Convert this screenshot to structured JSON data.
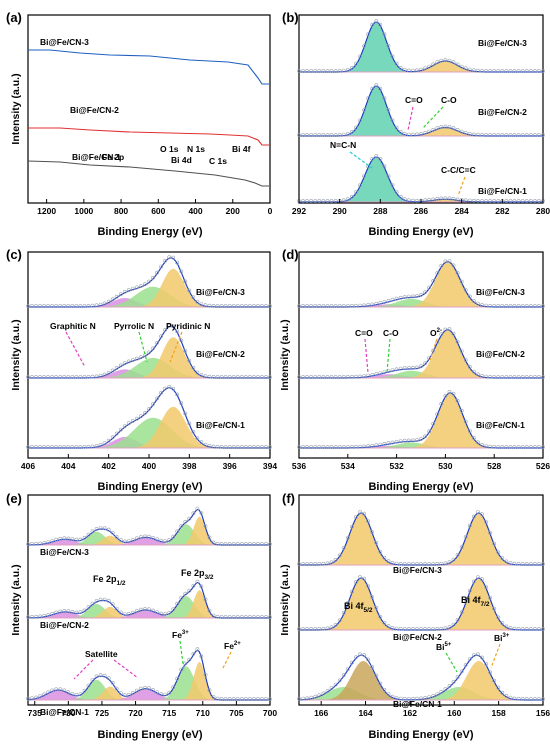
{
  "figure": {
    "ylabel": "Intensity (a.u.)",
    "xlabel": "Binding Energy (eV)"
  },
  "chart_data": [
    {
      "panel": "(a)",
      "type": "line",
      "xlabel": "Binding Energy (eV)",
      "ylabel": "Intensity (a.u.)",
      "xlim": [
        1300,
        0
      ],
      "xticks": [
        1200,
        1000,
        800,
        600,
        400,
        200,
        0
      ],
      "series": [
        {
          "name": "Bi@Fe/CN-3",
          "color": "#1f5fbf",
          "offset": 2.0
        },
        {
          "name": "Bi@Fe/CN-2",
          "color": "#e03030",
          "offset": 1.0
        },
        {
          "name": "Bi@Fe/CN-1",
          "color": "#505050",
          "offset": 0.0
        }
      ],
      "peaks": [
        {
          "label": "Fe 2p",
          "x": 711
        },
        {
          "label": "O 1s",
          "x": 531
        },
        {
          "label": "Bi 4d",
          "x": 442
        },
        {
          "label": "N 1s",
          "x": 399
        },
        {
          "label": "C 1s",
          "x": 285
        },
        {
          "label": "Bi 4f",
          "x": 159
        }
      ]
    },
    {
      "panel": "(b)",
      "type": "area",
      "xlabel": "Binding Energy (eV)",
      "xlim": [
        292,
        280
      ],
      "xticks": [
        292,
        290,
        288,
        286,
        284,
        282,
        280
      ],
      "series": [
        {
          "name": "Bi@Fe/CN-3",
          "components": [
            {
              "center": 288.2,
              "height": 1.0,
              "fwhm": 1.2,
              "color": "#5fd1b0"
            },
            {
              "center": 284.8,
              "height": 0.22,
              "fwhm": 1.4,
              "color": "#f2c96b"
            }
          ]
        },
        {
          "name": "Bi@Fe/CN-2",
          "components": [
            {
              "center": 288.2,
              "height": 1.0,
              "fwhm": 1.2,
              "color": "#5fd1b0"
            },
            {
              "center": 284.8,
              "height": 0.17,
              "fwhm": 1.4,
              "color": "#f2c96b"
            }
          ]
        },
        {
          "name": "Bi@Fe/CN-1",
          "components": [
            {
              "center": 288.2,
              "height": 1.0,
              "fwhm": 1.3,
              "color": "#5fd1b0"
            },
            {
              "center": 284.8,
              "height": 0.06,
              "fwhm": 1.4,
              "color": "#f2c96b"
            }
          ]
        }
      ],
      "annotations": [
        "N=C-N",
        "C=O",
        "C-O",
        "C-C/C=C"
      ]
    },
    {
      "panel": "(c)",
      "type": "area",
      "xlabel": "Binding Energy (eV)",
      "xlim": [
        406,
        394
      ],
      "xticks": [
        406,
        404,
        402,
        400,
        398,
        396,
        394
      ],
      "series": [
        {
          "name": "Bi@Fe/CN-3",
          "components": [
            {
              "center": 401.2,
              "height": 0.2,
              "fwhm": 1.4,
              "color": "#d98fe0"
            },
            {
              "center": 399.8,
              "height": 0.45,
              "fwhm": 2.0,
              "color": "#9be08f"
            },
            {
              "center": 398.8,
              "height": 0.85,
              "fwhm": 1.3,
              "color": "#f2c96b"
            }
          ]
        },
        {
          "name": "Bi@Fe/CN-2",
          "components": [
            {
              "center": 401.2,
              "height": 0.18,
              "fwhm": 1.4,
              "color": "#d98fe0"
            },
            {
              "center": 399.8,
              "height": 0.42,
              "fwhm": 2.0,
              "color": "#9be08f"
            },
            {
              "center": 398.8,
              "height": 0.85,
              "fwhm": 1.3,
              "color": "#f2c96b"
            }
          ]
        },
        {
          "name": "Bi@Fe/CN-1",
          "components": [
            {
              "center": 401.2,
              "height": 0.2,
              "fwhm": 1.4,
              "color": "#d98fe0"
            },
            {
              "center": 399.8,
              "height": 0.55,
              "fwhm": 2.2,
              "color": "#9be08f"
            },
            {
              "center": 398.8,
              "height": 0.75,
              "fwhm": 1.5,
              "color": "#f2c96b"
            }
          ]
        }
      ],
      "annotations": [
        "Graphitic N",
        "Pyrrolic N",
        "Pyridinic N"
      ]
    },
    {
      "panel": "(d)",
      "type": "area",
      "xlabel": "Binding Energy (eV)",
      "xlim": [
        536,
        526
      ],
      "xticks": [
        536,
        534,
        532,
        530,
        528,
        526
      ],
      "series": [
        {
          "name": "Bi@Fe/CN-3",
          "components": [
            {
              "center": 532.3,
              "height": 0.06,
              "fwhm": 1.4,
              "color": "#d98fe0"
            },
            {
              "center": 531.4,
              "height": 0.18,
              "fwhm": 1.4,
              "color": "#9be08f"
            },
            {
              "center": 529.9,
              "height": 1.0,
              "fwhm": 1.2,
              "color": "#f2c96b"
            }
          ]
        },
        {
          "name": "Bi@Fe/CN-2",
          "components": [
            {
              "center": 532.3,
              "height": 0.08,
              "fwhm": 1.4,
              "color": "#d98fe0"
            },
            {
              "center": 531.4,
              "height": 0.15,
              "fwhm": 1.4,
              "color": "#9be08f"
            },
            {
              "center": 529.9,
              "height": 1.0,
              "fwhm": 1.2,
              "color": "#f2c96b"
            }
          ]
        },
        {
          "name": "Bi@Fe/CN-1",
          "components": [
            {
              "center": 532.3,
              "height": 0.04,
              "fwhm": 1.4,
              "color": "#d98fe0"
            },
            {
              "center": 531.4,
              "height": 0.1,
              "fwhm": 1.4,
              "color": "#9be08f"
            },
            {
              "center": 529.8,
              "height": 1.0,
              "fwhm": 1.2,
              "color": "#f2c96b"
            }
          ]
        }
      ],
      "annotations": [
        "C=O",
        "C-O",
        "O2-"
      ]
    },
    {
      "panel": "(e)",
      "type": "area",
      "xlabel": "Binding Energy (eV)",
      "xlim": [
        736,
        700
      ],
      "xticks": [
        735,
        730,
        725,
        720,
        715,
        710,
        705,
        700
      ],
      "series": [
        {
          "name": "Bi@Fe/CN-3",
          "components": [
            {
              "center": 730.5,
              "height": 0.15,
              "fwhm": 4.0,
              "color": "#d98fe0"
            },
            {
              "center": 725.8,
              "height": 0.35,
              "fwhm": 3.0,
              "color": "#9be08f"
            },
            {
              "center": 723.8,
              "height": 0.25,
              "fwhm": 2.5,
              "color": "#f2c96b"
            },
            {
              "center": 718.5,
              "height": 0.2,
              "fwhm": 4.0,
              "color": "#d98fe0"
            },
            {
              "center": 712.5,
              "height": 0.55,
              "fwhm": 3.0,
              "color": "#9be08f"
            },
            {
              "center": 710.5,
              "height": 0.75,
              "fwhm": 2.0,
              "color": "#f2c96b"
            }
          ]
        },
        {
          "name": "Bi@Fe/CN-2",
          "components": [
            {
              "center": 730.5,
              "height": 0.15,
              "fwhm": 4.0,
              "color": "#d98fe0"
            },
            {
              "center": 725.8,
              "height": 0.35,
              "fwhm": 3.0,
              "color": "#9be08f"
            },
            {
              "center": 723.8,
              "height": 0.28,
              "fwhm": 2.5,
              "color": "#f2c96b"
            },
            {
              "center": 718.5,
              "height": 0.2,
              "fwhm": 4.0,
              "color": "#d98fe0"
            },
            {
              "center": 712.5,
              "height": 0.55,
              "fwhm": 3.0,
              "color": "#9be08f"
            },
            {
              "center": 710.5,
              "height": 0.7,
              "fwhm": 2.0,
              "color": "#f2c96b"
            }
          ]
        },
        {
          "name": "Bi@Fe/CN-1",
          "components": [
            {
              "center": 731.5,
              "height": 0.22,
              "fwhm": 4.0,
              "color": "#d98fe0"
            },
            {
              "center": 725.8,
              "height": 0.45,
              "fwhm": 3.0,
              "color": "#9be08f"
            },
            {
              "center": 723.8,
              "height": 0.3,
              "fwhm": 2.5,
              "color": "#f2c96b"
            },
            {
              "center": 718.5,
              "height": 0.25,
              "fwhm": 4.0,
              "color": "#d98fe0"
            },
            {
              "center": 712.5,
              "height": 0.75,
              "fwhm": 3.0,
              "color": "#9be08f"
            },
            {
              "center": 710.5,
              "height": 0.85,
              "fwhm": 2.0,
              "color": "#f2c96b"
            }
          ]
        }
      ],
      "annotations": [
        "Fe 2p1/2",
        "Fe 2p3/2",
        "Satellite",
        "Fe3+",
        "Fe2+"
      ]
    },
    {
      "panel": "(f)",
      "type": "area",
      "xlabel": "Binding Energy (eV)",
      "xlim": [
        167,
        156
      ],
      "xticks": [
        166,
        164,
        162,
        160,
        158,
        156
      ],
      "series": [
        {
          "name": "Bi@Fe/CN-3",
          "components": [
            {
              "center": 164.2,
              "height": 1.0,
              "fwhm": 1.2,
              "color": "#f2c96b"
            },
            {
              "center": 158.9,
              "height": 1.0,
              "fwhm": 1.2,
              "color": "#f2c96b"
            }
          ]
        },
        {
          "name": "Bi@Fe/CN-2",
          "components": [
            {
              "center": 164.2,
              "height": 1.0,
              "fwhm": 1.2,
              "color": "#f2c96b"
            },
            {
              "center": 158.9,
              "height": 1.0,
              "fwhm": 1.2,
              "color": "#f2c96b"
            }
          ]
        },
        {
          "name": "Bi@Fe/CN-1",
          "components": [
            {
              "center": 165.0,
              "height": 0.25,
              "fwhm": 1.6,
              "color": "#9be08f"
            },
            {
              "center": 164.1,
              "height": 0.75,
              "fwhm": 1.3,
              "color": "#c9a65a"
            },
            {
              "center": 159.8,
              "height": 0.25,
              "fwhm": 1.6,
              "color": "#9be08f"
            },
            {
              "center": 158.9,
              "height": 0.75,
              "fwhm": 1.3,
              "color": "#f2c96b"
            }
          ]
        }
      ],
      "annotations": [
        "Bi 4f5/2",
        "Bi 4f7/2",
        "Bi5+",
        "Bi3+"
      ]
    }
  ]
}
